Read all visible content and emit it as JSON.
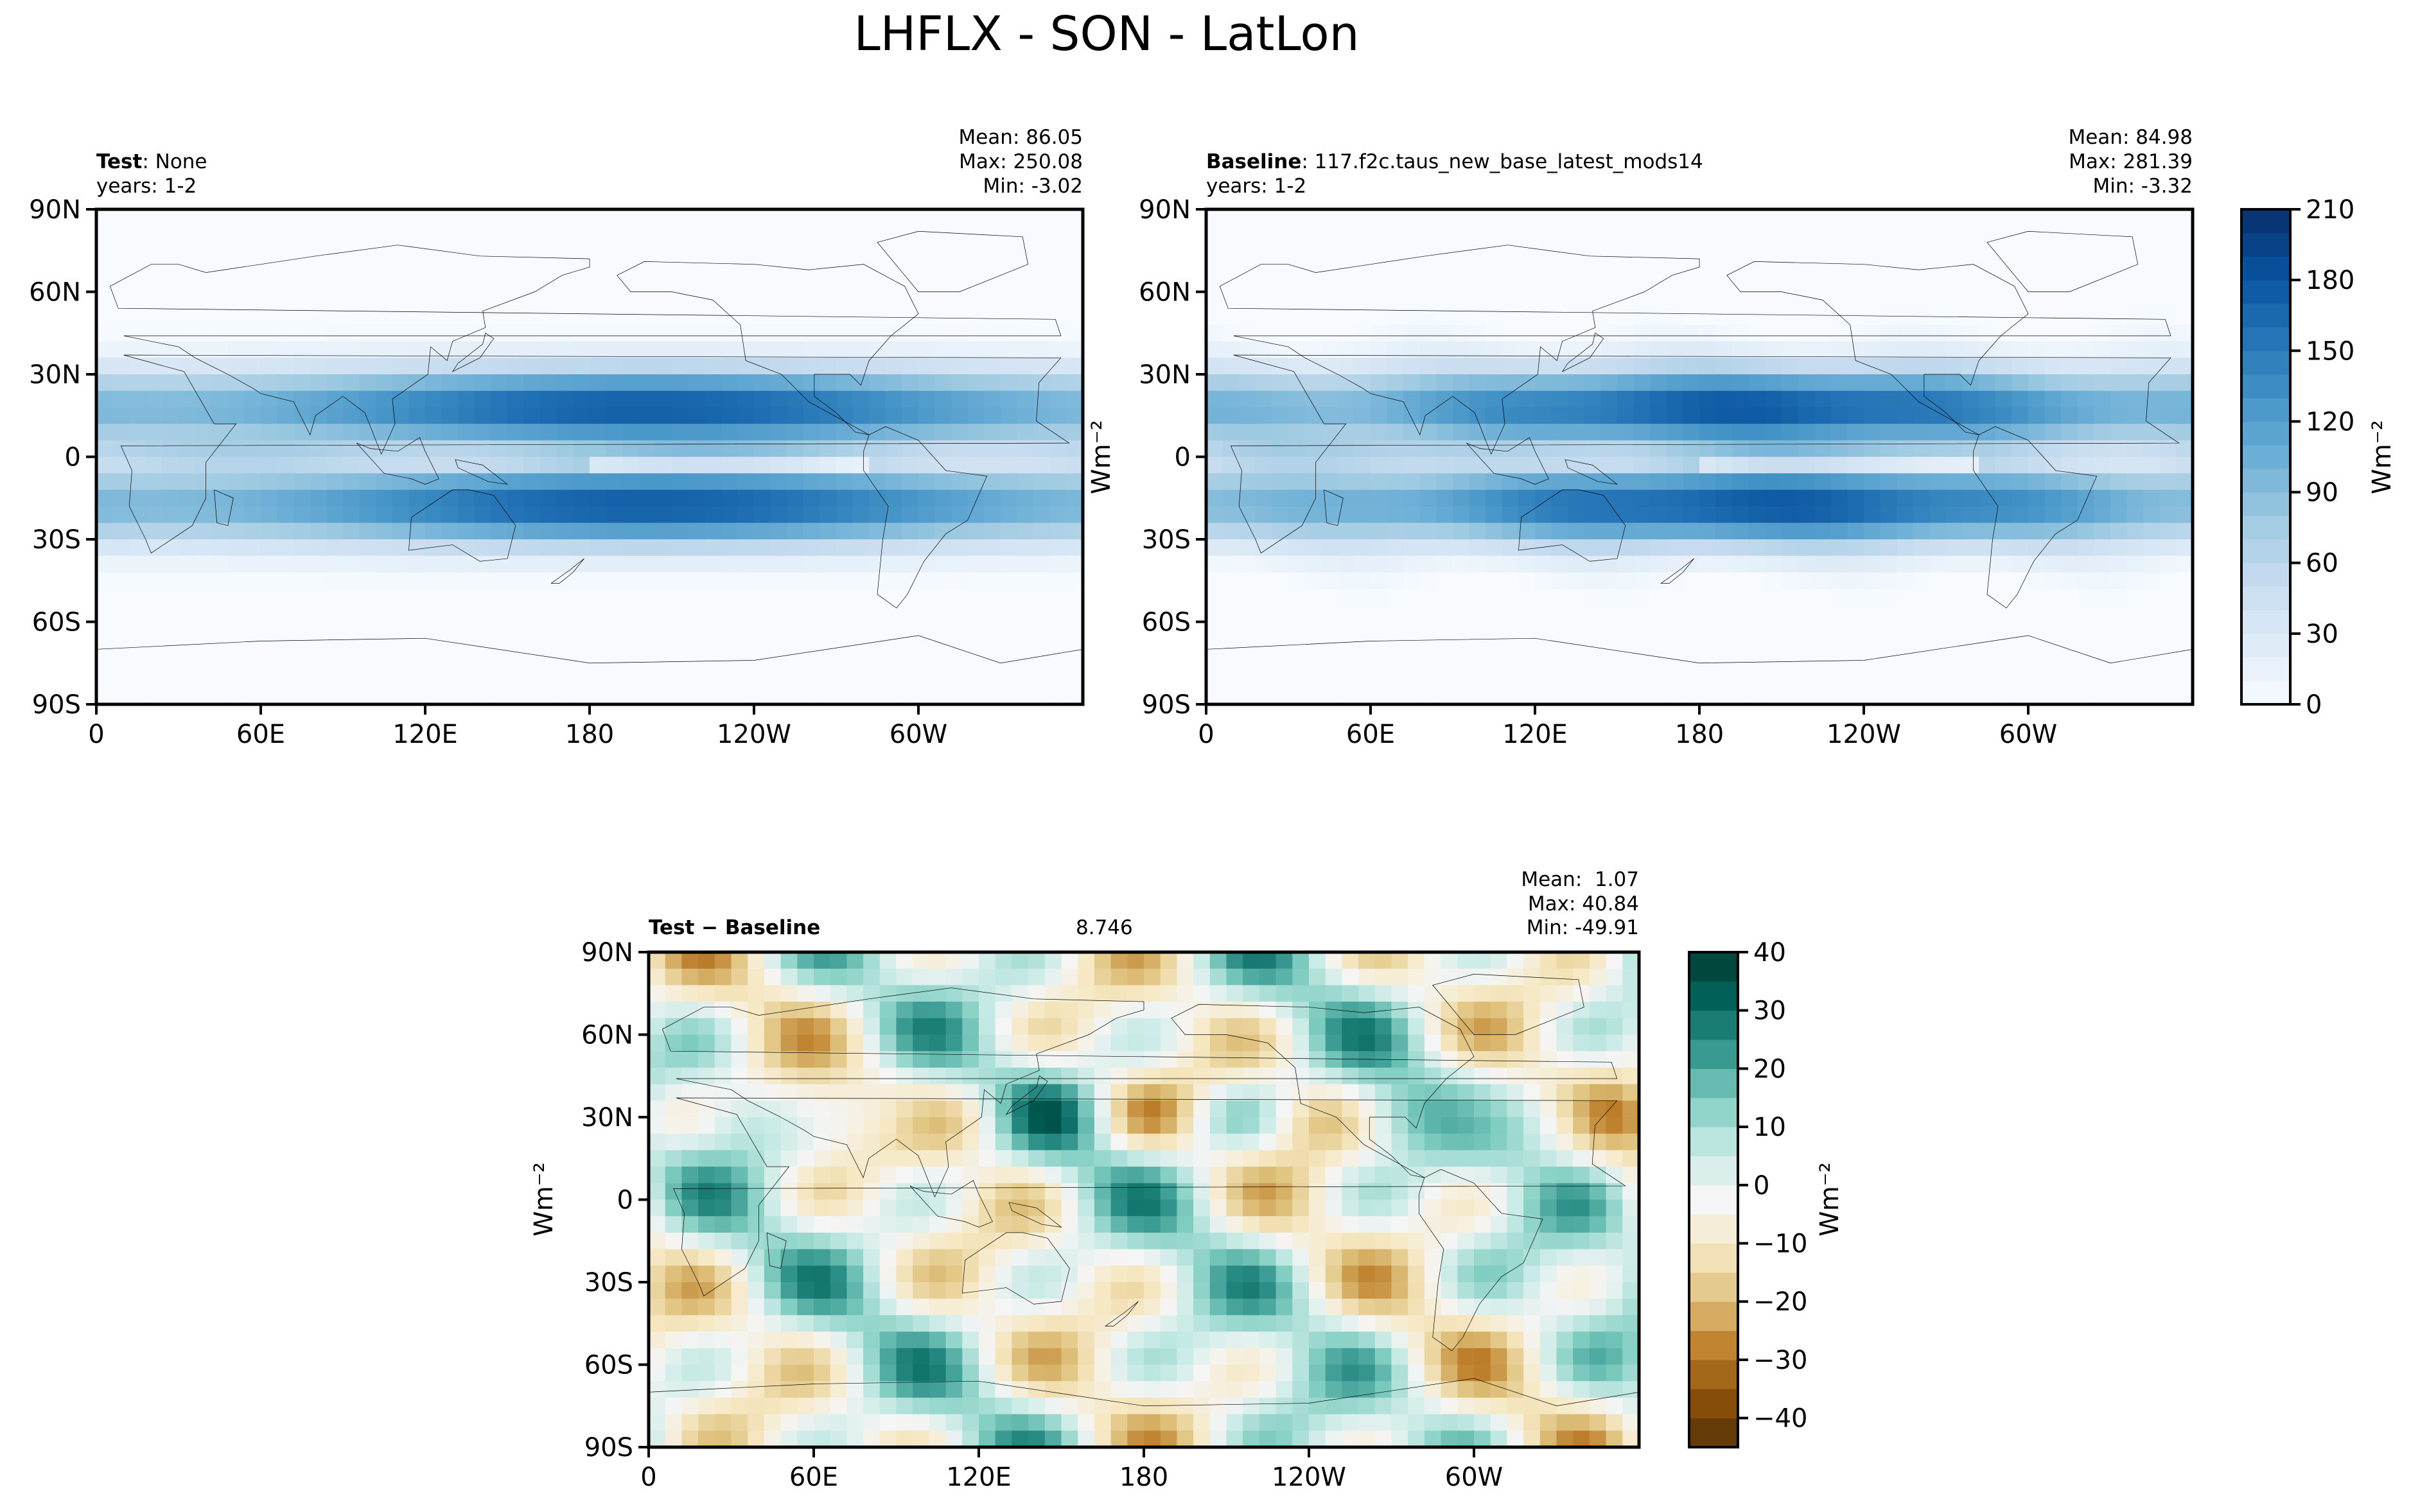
{
  "title": "LHFLX - SON - LatLon",
  "xticks": [
    "0",
    "60E",
    "120E",
    "180",
    "120W",
    "60W"
  ],
  "yticks": [
    "90N",
    "60N",
    "30N",
    "0",
    "30S",
    "60S",
    "90S"
  ],
  "colors": {
    "test_baseline_low": "#f7fbff",
    "test_baseline_high": "#08306b",
    "diff_neg": "#543005",
    "diff_mid": "#f5f0e1",
    "diff_pos": "#003c30",
    "coast": "#000000"
  },
  "chart_data": [
    {
      "type": "heatmap",
      "name": "test",
      "label_bold": "Test",
      "label_rest": ": None",
      "years": "years: 1-2",
      "stats": [
        "Mean: 86.05",
        "Max: 250.08",
        "Min: -3.02"
      ],
      "xlim": [
        0,
        360
      ],
      "ylim": [
        -90,
        90
      ],
      "mean": 86.05,
      "max": 250.08,
      "min": -3.02
    },
    {
      "type": "heatmap",
      "name": "baseline",
      "label_bold": "Baseline",
      "label_rest": ": 117.f2c.taus_new_base_latest_mods14",
      "years": "years: 1-2",
      "stats": [
        "Mean: 84.98",
        "Max: 281.39",
        "Min: -3.32"
      ],
      "xlim": [
        0,
        360
      ],
      "ylim": [
        -90,
        90
      ],
      "mean": 84.98,
      "max": 281.39,
      "min": -3.32
    },
    {
      "type": "heatmap",
      "name": "diff",
      "label": "Test − Baseline",
      "rmse": 8.746,
      "stats": [
        "Mean:  1.07",
        "Max: 40.84",
        "Min: -49.91"
      ],
      "ylabel": "Wm⁻²",
      "xlim": [
        0,
        360
      ],
      "ylim": [
        -90,
        90
      ],
      "mean": 1.07,
      "max": 40.84,
      "min": -49.91
    }
  ],
  "colorbar_top": {
    "label": "Wm⁻²",
    "range": [
      0,
      210
    ],
    "ticks": [
      "0",
      "30",
      "60",
      "90",
      "120",
      "150",
      "180",
      "210"
    ],
    "levels": 21
  },
  "colorbar_diff": {
    "label": "Wm⁻²",
    "range": [
      -45,
      40
    ],
    "ticks": [
      "−40",
      "−30",
      "−20",
      "−10",
      "0",
      "10",
      "20",
      "30",
      "40"
    ],
    "levels": 17
  },
  "mid_ylabel": "Wm⁻²"
}
